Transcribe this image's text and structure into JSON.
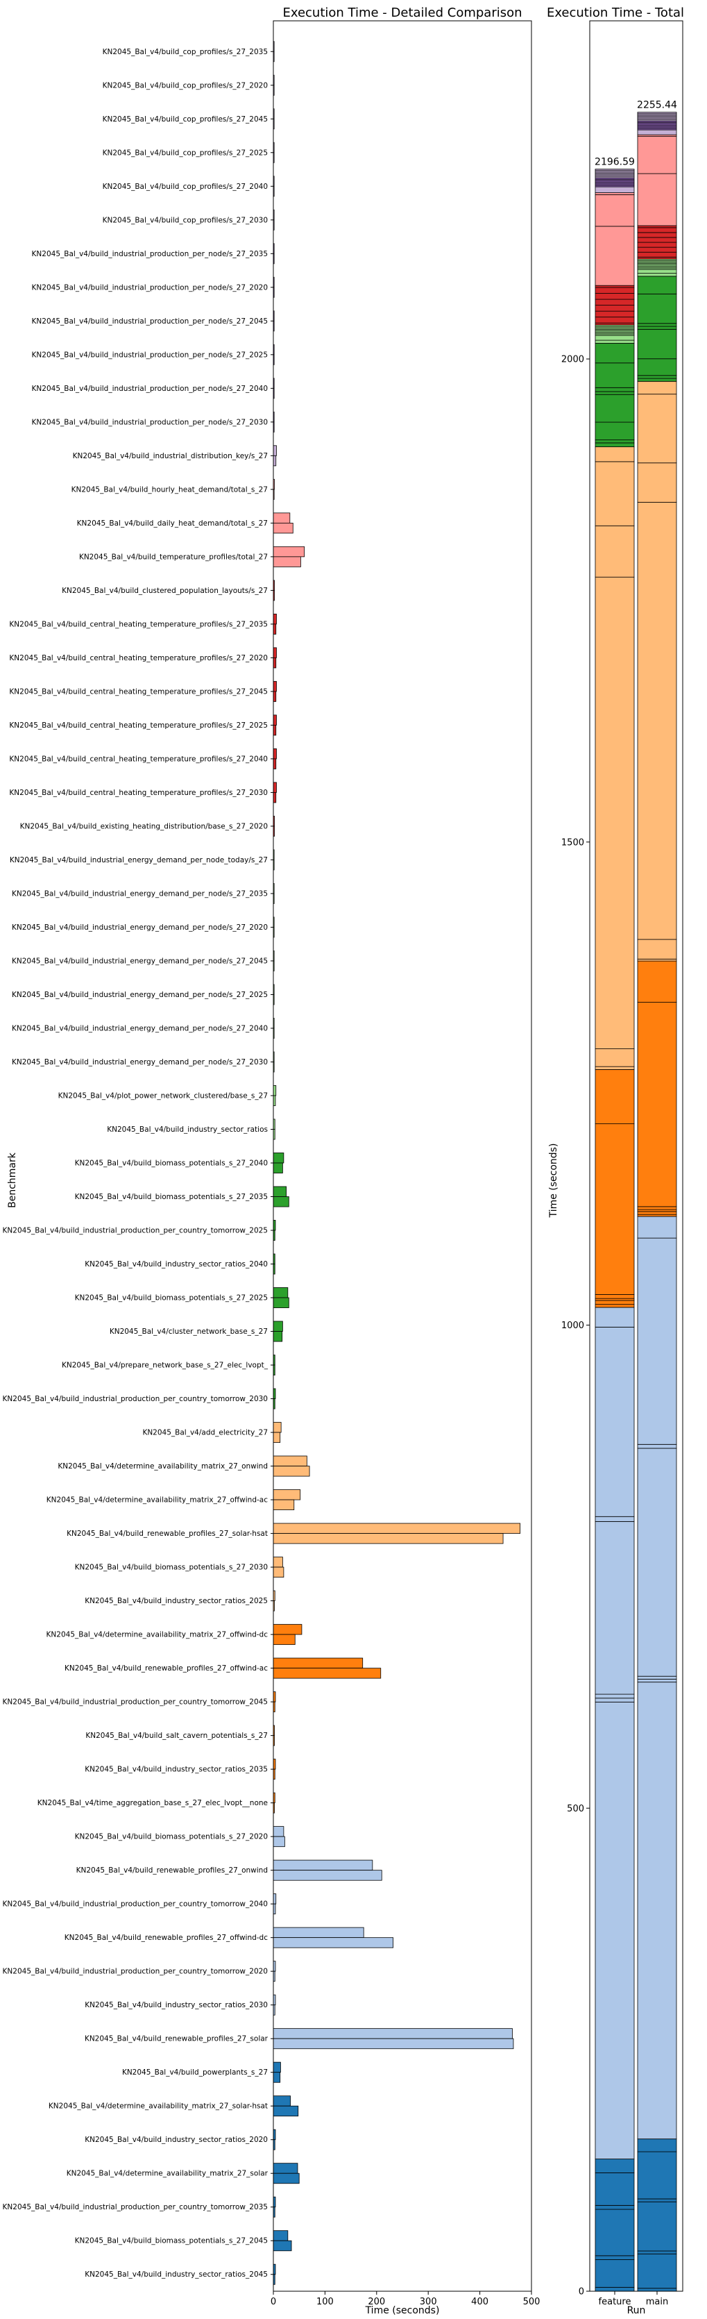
{
  "chart_data": [
    {
      "type": "bar",
      "orientation": "horizontal",
      "title": "Execution Time - Detailed Comparison",
      "xlabel": "Time (seconds)",
      "ylabel": "Benchmark",
      "xlim": [
        0,
        500
      ],
      "xticks": [
        0,
        100,
        200,
        300,
        400,
        500
      ],
      "grid": false,
      "categories": [
        "KN2045_Bal_v4/build_cop_profiles/s_27_2035",
        "KN2045_Bal_v4/build_cop_profiles/s_27_2020",
        "KN2045_Bal_v4/build_cop_profiles/s_27_2045",
        "KN2045_Bal_v4/build_cop_profiles/s_27_2025",
        "KN2045_Bal_v4/build_cop_profiles/s_27_2040",
        "KN2045_Bal_v4/build_cop_profiles/s_27_2030",
        "KN2045_Bal_v4/build_industrial_production_per_node/s_27_2035",
        "KN2045_Bal_v4/build_industrial_production_per_node/s_27_2020",
        "KN2045_Bal_v4/build_industrial_production_per_node/s_27_2045",
        "KN2045_Bal_v4/build_industrial_production_per_node/s_27_2025",
        "KN2045_Bal_v4/build_industrial_production_per_node/s_27_2040",
        "KN2045_Bal_v4/build_industrial_production_per_node/s_27_2030",
        "KN2045_Bal_v4/build_industrial_distribution_key/s_27",
        "KN2045_Bal_v4/build_hourly_heat_demand/total_s_27",
        "KN2045_Bal_v4/build_daily_heat_demand/total_s_27",
        "KN2045_Bal_v4/build_temperature_profiles/total_27",
        "KN2045_Bal_v4/build_clustered_population_layouts/s_27",
        "KN2045_Bal_v4/build_central_heating_temperature_profiles/s_27_2035",
        "KN2045_Bal_v4/build_central_heating_temperature_profiles/s_27_2020",
        "KN2045_Bal_v4/build_central_heating_temperature_profiles/s_27_2045",
        "KN2045_Bal_v4/build_central_heating_temperature_profiles/s_27_2025",
        "KN2045_Bal_v4/build_central_heating_temperature_profiles/s_27_2040",
        "KN2045_Bal_v4/build_central_heating_temperature_profiles/s_27_2030",
        "KN2045_Bal_v4/build_existing_heating_distribution/base_s_27_2020",
        "KN2045_Bal_v4/build_industrial_energy_demand_per_node_today/s_27",
        "KN2045_Bal_v4/build_industrial_energy_demand_per_node/s_27_2035",
        "KN2045_Bal_v4/build_industrial_energy_demand_per_node/s_27_2020",
        "KN2045_Bal_v4/build_industrial_energy_demand_per_node/s_27_2045",
        "KN2045_Bal_v4/build_industrial_energy_demand_per_node/s_27_2025",
        "KN2045_Bal_v4/build_industrial_energy_demand_per_node/s_27_2040",
        "KN2045_Bal_v4/build_industrial_energy_demand_per_node/s_27_2030",
        "KN2045_Bal_v4/plot_power_network_clustered/base_s_27",
        "KN2045_Bal_v4/build_industry_sector_ratios",
        "KN2045_Bal_v4/build_biomass_potentials_s_27_2040",
        "KN2045_Bal_v4/build_biomass_potentials_s_27_2035",
        "KN2045_Bal_v4/build_industrial_production_per_country_tomorrow_2025",
        "KN2045_Bal_v4/build_industry_sector_ratios_2040",
        "KN2045_Bal_v4/build_biomass_potentials_s_27_2025",
        "KN2045_Bal_v4/cluster_network_base_s_27",
        "KN2045_Bal_v4/prepare_network_base_s_27_elec_lvopt_",
        "KN2045_Bal_v4/build_industrial_production_per_country_tomorrow_2030",
        "KN2045_Bal_v4/add_electricity_27",
        "KN2045_Bal_v4/determine_availability_matrix_27_onwind",
        "KN2045_Bal_v4/determine_availability_matrix_27_offwind-ac",
        "KN2045_Bal_v4/build_renewable_profiles_27_solar-hsat",
        "KN2045_Bal_v4/build_biomass_potentials_s_27_2030",
        "KN2045_Bal_v4/build_industry_sector_ratios_2025",
        "KN2045_Bal_v4/determine_availability_matrix_27_offwind-dc",
        "KN2045_Bal_v4/build_renewable_profiles_27_offwind-ac",
        "KN2045_Bal_v4/build_industrial_production_per_country_tomorrow_2045",
        "KN2045_Bal_v4/build_salt_cavern_potentials_s_27",
        "KN2045_Bal_v4/build_industry_sector_ratios_2035",
        "KN2045_Bal_v4/time_aggregation_base_s_27_elec_lvopt__none",
        "KN2045_Bal_v4/build_biomass_potentials_s_27_2020",
        "KN2045_Bal_v4/build_renewable_profiles_27_onwind",
        "KN2045_Bal_v4/build_industrial_production_per_country_tomorrow_2040",
        "KN2045_Bal_v4/build_renewable_profiles_27_offwind-dc",
        "KN2045_Bal_v4/build_industrial_production_per_country_tomorrow_2020",
        "KN2045_Bal_v4/build_industry_sector_ratios_2030",
        "KN2045_Bal_v4/build_renewable_profiles_27_solar",
        "KN2045_Bal_v4/build_powerplants_s_27",
        "KN2045_Bal_v4/determine_availability_matrix_27_solar-hsat",
        "KN2045_Bal_v4/build_industry_sector_ratios_2020",
        "KN2045_Bal_v4/determine_availability_matrix_27_solar",
        "KN2045_Bal_v4/build_industrial_production_per_country_tomorrow_2035",
        "KN2045_Bal_v4/build_biomass_potentials_s_27_2045",
        "KN2045_Bal_v4/build_industry_sector_ratios_2045"
      ],
      "series": [
        {
          "values": [
            1.5,
            1.5,
            1.5,
            1.5,
            1.5,
            1.5,
            1.5,
            1.5,
            1.5,
            1.5,
            1.5,
            1.5,
            6,
            2,
            32,
            60,
            2,
            6,
            6,
            6,
            6,
            6,
            6,
            2,
            1.5,
            1.5,
            1.5,
            1.5,
            1.5,
            1.5,
            1.5,
            5,
            3,
            20,
            25,
            4,
            3,
            28,
            18,
            3,
            4,
            15,
            65,
            52,
            478,
            18,
            3,
            55,
            173,
            4,
            2,
            4,
            3,
            20,
            192,
            5,
            175,
            4,
            4,
            463,
            14,
            33,
            4,
            47,
            4,
            28,
            4
          ]
        },
        {
          "values": [
            1.5,
            1.5,
            1.5,
            1.5,
            1.5,
            1.5,
            1.5,
            1.5,
            1.5,
            1.5,
            1.5,
            1.5,
            5,
            1.5,
            38,
            53,
            2,
            5,
            5,
            5,
            5,
            5,
            5,
            2,
            1.5,
            1.5,
            1.5,
            1.5,
            1.5,
            1.5,
            1.5,
            4,
            3,
            18,
            30,
            3,
            3,
            30,
            17,
            3,
            3,
            13,
            70,
            40,
            445,
            20,
            2,
            42,
            208,
            3,
            2,
            3,
            2,
            22,
            210,
            4,
            232,
            3,
            3,
            465,
            13,
            48,
            3,
            50,
            3,
            35,
            3
          ]
        }
      ],
      "colors": [
        "#1f77b4",
        "#aec7e8",
        "#ff7f0e",
        "#ffbb78",
        "#2ca02c",
        "#98df8a",
        "#d62728",
        "#ff9896",
        "#9467bd",
        "#c5b0d5"
      ],
      "color_groups": [
        9,
        9,
        9,
        9,
        9,
        9,
        8,
        8,
        8,
        8,
        8,
        8,
        9,
        7,
        7,
        7,
        6,
        6,
        6,
        6,
        6,
        6,
        6,
        6,
        5,
        5,
        5,
        5,
        5,
        5,
        5,
        5,
        5,
        4,
        4,
        4,
        4,
        4,
        4,
        4,
        4,
        3,
        3,
        3,
        3,
        3,
        3,
        2,
        2,
        2,
        2,
        2,
        2,
        1,
        1,
        1,
        1,
        1,
        1,
        1,
        0,
        0,
        0,
        0,
        0,
        0,
        0
      ]
    },
    {
      "type": "bar",
      "stacked": true,
      "title": "Execution Time - Total",
      "xlabel": "Run",
      "ylabel": "Time (seconds)",
      "categories": [
        "feature",
        "main"
      ],
      "totals": [
        2196.59,
        2255.44
      ],
      "total_labels": [
        "2196.59",
        "2255.44"
      ],
      "ylim": [
        0,
        2350
      ],
      "yticks": [
        0,
        500,
        1000,
        1500,
        2000
      ],
      "grid": false
    }
  ]
}
